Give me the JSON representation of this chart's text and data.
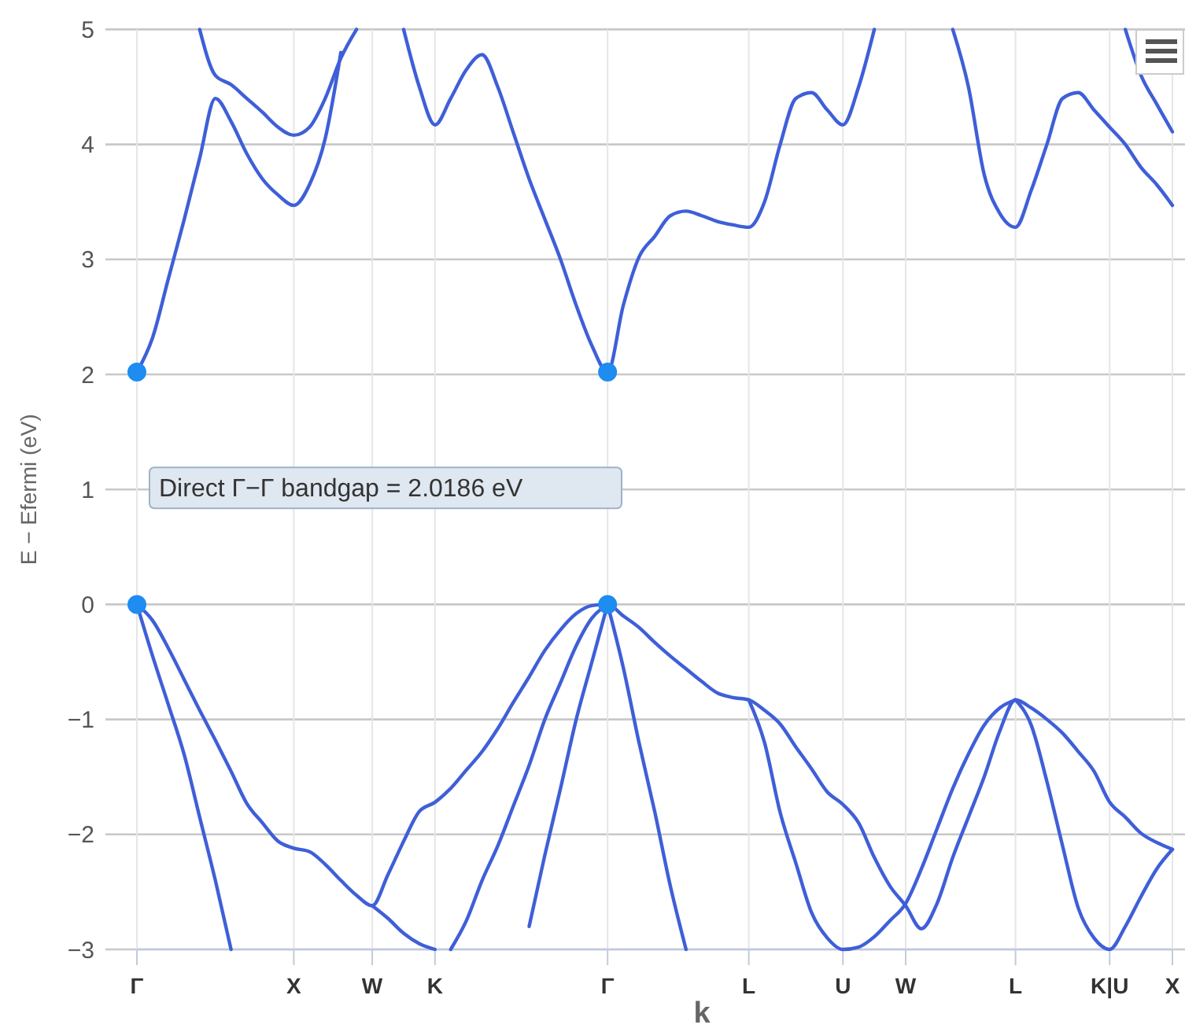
{
  "chart_data": {
    "type": "line",
    "xlabel": "k",
    "ylabel": "E − Efermi (eV)",
    "categories": [
      "Γ",
      null,
      null,
      null,
      null,
      null,
      null,
      null,
      null,
      null,
      "X",
      null,
      null,
      null,
      null,
      "W",
      null,
      null,
      null,
      "K",
      null,
      null,
      null,
      null,
      null,
      null,
      null,
      null,
      null,
      null,
      "Γ",
      null,
      null,
      null,
      null,
      null,
      null,
      null,
      null,
      "L",
      null,
      null,
      null,
      null,
      null,
      "U",
      null,
      null,
      null,
      "W",
      null,
      null,
      null,
      null,
      null,
      null,
      "L",
      null,
      null,
      null,
      null,
      null,
      "K|U",
      null,
      null,
      null,
      "X"
    ],
    "ylim": [
      -3,
      5
    ],
    "yticks": [
      {
        "value": -3,
        "label": "−3"
      },
      {
        "value": -2,
        "label": "−2"
      },
      {
        "value": -1,
        "label": "−1"
      },
      0,
      1,
      2,
      3,
      4,
      5
    ],
    "grid": true,
    "line_style": "solid",
    "marker": "none",
    "annotations": [
      "Direct Γ−Γ bandgap = 2.0186 eV"
    ],
    "series": [
      {
        "color": "#3f5fd8",
        "values": [
          2.02,
          2.32,
          2.83,
          3.34,
          3.88,
          4.4,
          4.2,
          3.92,
          3.7,
          3.56,
          3.47,
          3.65,
          4.05,
          4.8,
          null,
          null,
          null,
          5,
          4.5,
          4.17,
          4.4,
          4.65,
          4.78,
          4.5,
          4.1,
          3.7,
          3.35,
          3.0,
          2.6,
          2.25,
          2.02,
          2.6,
          3.02,
          3.2,
          3.38,
          3.42,
          3.38,
          3.33,
          3.3,
          3.28,
          3.5,
          4.0,
          4.4,
          4.45,
          4.3,
          4.17,
          4.5,
          5,
          null,
          null,
          null,
          null,
          5,
          4.5,
          3.74,
          3.4,
          3.28,
          3.6,
          4.0,
          4.4,
          4.45,
          4.3,
          4.15,
          4.0,
          3.8,
          3.65,
          3.47
        ]
      },
      {
        "color": "#3f5fd8",
        "values": [
          null,
          null,
          null,
          null,
          5,
          4.6,
          4.52,
          4.4,
          4.28,
          4.15,
          4.08,
          4.15,
          4.4,
          4.75,
          5,
          null,
          null,
          null,
          null,
          null,
          null,
          null,
          null,
          null,
          null,
          null,
          null,
          null,
          null,
          null,
          null,
          null,
          null,
          null,
          null,
          null,
          null,
          null,
          null,
          null,
          null,
          null,
          null,
          null,
          null,
          null,
          null,
          null,
          null,
          null,
          null,
          null,
          null,
          null,
          null,
          null,
          null,
          null,
          null,
          null,
          null,
          null,
          null,
          5,
          4.6,
          4.35,
          4.11
        ]
      },
      {
        "color": "#3f5fd8",
        "values": [
          0,
          -0.14,
          -0.38,
          -0.65,
          -0.92,
          -1.18,
          -1.45,
          -1.73,
          -1.9,
          -2.06,
          -2.12,
          -2.15,
          -2.26,
          -2.4,
          -2.53,
          -2.62,
          -2.35,
          -2.06,
          -1.8,
          -1.72,
          -1.6,
          -1.44,
          -1.28,
          -1.08,
          -0.85,
          -0.63,
          -0.4,
          -0.22,
          -0.08,
          -0.01,
          0,
          -0.1,
          -0.2,
          -0.33,
          -0.45,
          -0.56,
          -0.67,
          -0.77,
          -0.81,
          -0.83,
          -0.92,
          -1.04,
          -1.24,
          -1.43,
          -1.63,
          -1.74,
          -1.9,
          -2.2,
          -2.45,
          -2.62,
          -2.82,
          -2.6,
          -2.2,
          -1.85,
          -1.5,
          -1.1,
          -0.83,
          -0.9,
          -1.0,
          -1.12,
          -1.28,
          -1.45,
          -1.72,
          -1.85,
          -1.99,
          -2.07,
          -2.13
        ]
      },
      {
        "color": "#3f5fd8",
        "values": [
          0,
          -0.45,
          -0.87,
          -1.3,
          -1.85,
          -2.4,
          -3,
          null,
          null,
          null,
          null,
          null,
          null,
          null,
          null,
          null,
          null,
          null,
          null,
          null,
          -3,
          -2.75,
          -2.4,
          -2.1,
          -1.75,
          -1.4,
          -1.0,
          -0.68,
          -0.36,
          -0.12,
          0,
          null,
          null,
          null,
          null,
          null,
          null,
          null,
          null,
          -0.83,
          -1.2,
          -1.81,
          -2.25,
          -2.68,
          -2.9,
          -3,
          -2.98,
          -2.89,
          -2.75,
          -2.6,
          -2.3,
          -1.95,
          -1.6,
          -1.3,
          -1.05,
          -0.9,
          -0.83,
          null,
          null,
          null,
          null,
          null,
          null,
          null,
          null,
          null,
          null
        ]
      },
      {
        "color": "#3f5fd8",
        "values": [
          null,
          null,
          null,
          null,
          null,
          null,
          null,
          null,
          null,
          null,
          null,
          null,
          null,
          null,
          null,
          -2.62,
          -2.73,
          -2.86,
          -2.95,
          -3,
          null,
          null,
          null,
          null,
          null,
          -2.8,
          -2.18,
          -1.6,
          -1.0,
          -0.5,
          0,
          null,
          null,
          null,
          null,
          null,
          null,
          null,
          null,
          null,
          null,
          null,
          null,
          null,
          null,
          null,
          null,
          null,
          null,
          null,
          null,
          null,
          null,
          null,
          null,
          null,
          -0.83,
          -1.05,
          -1.54,
          -2.1,
          -2.64,
          -2.9,
          -3,
          -2.8,
          -2.54,
          -2.3,
          -2.13
        ]
      },
      {
        "color": "#3f5fd8",
        "values": [
          null,
          null,
          null,
          null,
          null,
          null,
          null,
          null,
          null,
          null,
          null,
          null,
          null,
          null,
          null,
          null,
          null,
          null,
          null,
          null,
          null,
          null,
          null,
          null,
          null,
          null,
          null,
          null,
          null,
          null,
          0,
          -0.55,
          -1.2,
          -1.8,
          -2.45,
          -3,
          null,
          null,
          null,
          null,
          null,
          null,
          null,
          null,
          null,
          null,
          null,
          null,
          null,
          null,
          null,
          null,
          null,
          null,
          null,
          null,
          null,
          null,
          null,
          null,
          null,
          null,
          null,
          null,
          null,
          null,
          null
        ]
      },
      {
        "type": "scatter",
        "marker": "circle",
        "color": "#1e8cf0",
        "values": [
          2.02,
          null,
          null,
          null,
          null,
          null,
          null,
          null,
          null,
          null,
          null,
          null,
          null,
          null,
          null,
          null,
          null,
          null,
          null,
          null,
          null,
          null,
          null,
          null,
          null,
          null,
          null,
          null,
          null,
          null,
          2.02,
          null,
          null,
          null,
          null,
          null,
          null,
          null,
          null,
          null,
          null,
          null,
          null,
          null,
          null,
          null,
          null,
          null,
          null,
          null,
          null,
          null,
          null,
          null,
          null,
          null,
          null,
          null,
          null,
          null,
          null,
          null,
          null,
          null,
          null,
          null,
          null
        ]
      },
      {
        "type": "scatter",
        "marker": "circle",
        "color": "#1e8cf0",
        "values": [
          0,
          null,
          null,
          null,
          null,
          null,
          null,
          null,
          null,
          null,
          null,
          null,
          null,
          null,
          null,
          null,
          null,
          null,
          null,
          null,
          null,
          null,
          null,
          null,
          null,
          null,
          null,
          null,
          null,
          null,
          0,
          null,
          null,
          null,
          null,
          null,
          null,
          null,
          null,
          null,
          null,
          null,
          null,
          null,
          null,
          null,
          null,
          null,
          null,
          null,
          null,
          null,
          null,
          null,
          null,
          null,
          null,
          null,
          null,
          null,
          null,
          null,
          null,
          null,
          null,
          null,
          null
        ]
      }
    ]
  }
}
